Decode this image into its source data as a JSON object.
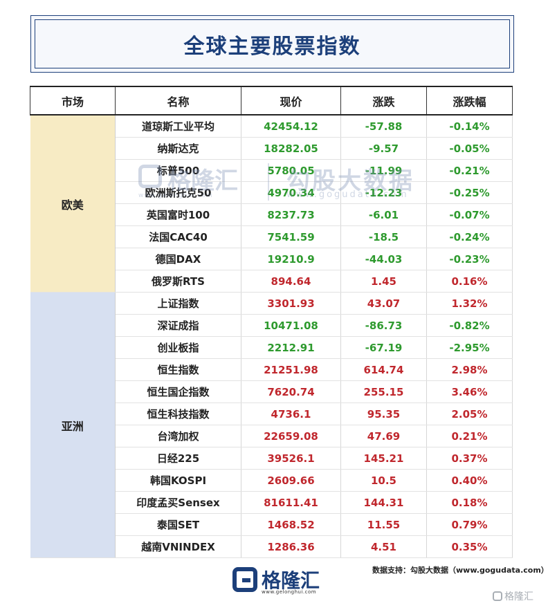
{
  "title": "全球主要股票指数",
  "headers": {
    "market": "市场",
    "name": "名称",
    "price": "现价",
    "change": "涨跌",
    "pct": "涨跌幅"
  },
  "regions": {
    "eu": "欧美",
    "asia": "亚洲"
  },
  "colors": {
    "up": "#c0272d",
    "down": "#2e9a2e",
    "brand": "#1c3f7a",
    "eu_bg": "#f7ebc4",
    "asia_bg": "#d7e0f1"
  },
  "rows": [
    {
      "name": "道琼斯工业平均",
      "price": "42454.12",
      "change": "-57.88",
      "pct": "-0.14%"
    },
    {
      "name": "纳斯达克",
      "price": "18282.05",
      "change": "-9.57",
      "pct": "-0.05%"
    },
    {
      "name": "标普500",
      "price": "5780.05",
      "change": "-11.99",
      "pct": "-0.21%"
    },
    {
      "name": "欧洲斯托克50",
      "price": "4970.34",
      "change": "-12.23",
      "pct": "-0.25%"
    },
    {
      "name": "英国富时100",
      "price": "8237.73",
      "change": "-6.01",
      "pct": "-0.07%"
    },
    {
      "name": "法国CAC40",
      "price": "7541.59",
      "change": "-18.5",
      "pct": "-0.24%"
    },
    {
      "name": "德国DAX",
      "price": "19210.9",
      "change": "-44.03",
      "pct": "-0.23%"
    },
    {
      "name": "俄罗斯RTS",
      "price": "894.64",
      "change": "1.45",
      "pct": "0.16%"
    },
    {
      "name": "上证指数",
      "price": "3301.93",
      "change": "43.07",
      "pct": "1.32%"
    },
    {
      "name": "深证成指",
      "price": "10471.08",
      "change": "-86.73",
      "pct": "-0.82%"
    },
    {
      "name": "创业板指",
      "price": "2212.91",
      "change": "-67.19",
      "pct": "-2.95%"
    },
    {
      "name": "恒生指数",
      "price": "21251.98",
      "change": "614.74",
      "pct": "2.98%"
    },
    {
      "name": "恒生国企指数",
      "price": "7620.74",
      "change": "255.15",
      "pct": "3.46%"
    },
    {
      "name": "恒生科技指数",
      "price": "4736.1",
      "change": "95.35",
      "pct": "2.05%"
    },
    {
      "name": "台湾加权",
      "price": "22659.08",
      "change": "47.69",
      "pct": "0.21%"
    },
    {
      "name": "日经225",
      "price": "39526.1",
      "change": "145.21",
      "pct": "0.37%"
    },
    {
      "name": "韩国KOSPI",
      "price": "2609.66",
      "change": "10.5",
      "pct": "0.40%"
    },
    {
      "name": "印度孟买Sensex",
      "price": "81611.41",
      "change": "144.31",
      "pct": "0.18%"
    },
    {
      "name": "泰国SET",
      "price": "1468.52",
      "change": "11.55",
      "pct": "0.79%"
    },
    {
      "name": "越南VNINDEX",
      "price": "1286.36",
      "change": "4.51",
      "pct": "0.35%"
    }
  ],
  "watermark": {
    "brand_cn": "格隆汇",
    "brand_url": "www.gelonghui.com",
    "data_cn": "勾股大数据",
    "data_url": "www.gogudata.com"
  },
  "footer": {
    "logo_name": "格隆汇",
    "logo_url": "www.gelonghui.com",
    "source": "数据支持：勾股大数据（www.gogudata.com）",
    "corner_mark": "格隆汇"
  }
}
